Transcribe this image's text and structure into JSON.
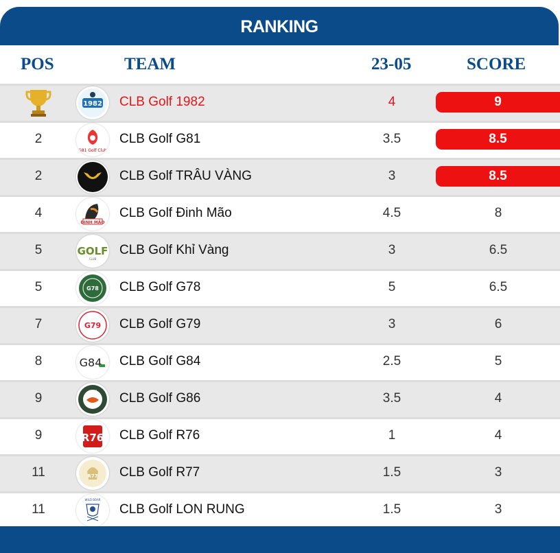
{
  "title": "RANKING",
  "columns": {
    "pos": "POS",
    "team": "TEAM",
    "round": "23-05",
    "score": "SCORE"
  },
  "rows": [
    {
      "pos": "",
      "team": "CLB Golf 1982",
      "round": "4",
      "score": "9",
      "highlight_score": true,
      "leader": true,
      "logo": "golf-1982-logo"
    },
    {
      "pos": "2",
      "team": "CLB Golf G81",
      "round": "3.5",
      "score": "8.5",
      "highlight_score": true,
      "logo": "golf-g81-logo"
    },
    {
      "pos": "2",
      "team": "CLB Golf TRÂU VÀNG",
      "round": "3",
      "score": "8.5",
      "highlight_score": true,
      "logo": "golf-trau-vang-logo"
    },
    {
      "pos": "4",
      "team": "CLB Golf Đinh Mão",
      "round": "4.5",
      "score": "8",
      "logo": "golf-dinh-mao-logo"
    },
    {
      "pos": "5",
      "team": "CLB Golf Khỉ Vàng",
      "round": "3",
      "score": "6.5",
      "logo": "golf-khi-vang-logo"
    },
    {
      "pos": "5",
      "team": "CLB Golf G78",
      "round": "5",
      "score": "6.5",
      "logo": "golf-g78-logo"
    },
    {
      "pos": "7",
      "team": "CLB Golf G79",
      "round": "3",
      "score": "6",
      "logo": "golf-g79-logo"
    },
    {
      "pos": "8",
      "team": "CLB Golf G84",
      "round": "2.5",
      "score": "5",
      "logo": "golf-g84-logo"
    },
    {
      "pos": "9",
      "team": "CLB Golf G86",
      "round": "3.5",
      "score": "4",
      "logo": "golf-g86-logo"
    },
    {
      "pos": "9",
      "team": "CLB Golf R76",
      "round": "1",
      "score": "4",
      "logo": "golf-r76-logo"
    },
    {
      "pos": "11",
      "team": "CLB Golf R77",
      "round": "1.5",
      "score": "3",
      "logo": "golf-r77-logo"
    },
    {
      "pos": "11",
      "team": "CLB Golf LON RUNG",
      "round": "1.5",
      "score": "3",
      "logo": "golf-lon-rung-logo"
    }
  ],
  "colors": {
    "brand": "#0b4b8a",
    "highlight": "#ee1111",
    "leader_text": "#e4161b",
    "alt_row": "#e8e8e8"
  }
}
